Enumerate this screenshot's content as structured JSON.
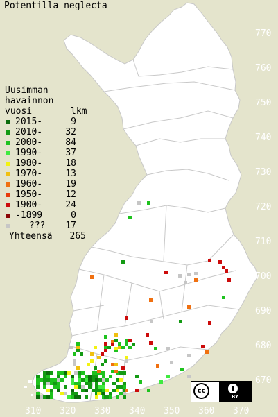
{
  "title": "Potentilla neglecta",
  "legend": {
    "header_line1": "Uusimman",
    "header_line2": "havainnon",
    "header_col1": "vuosi",
    "header_col2": "lkm",
    "items": [
      {
        "label": "2015-",
        "count": "9",
        "color": "#0b6b0b"
      },
      {
        "label": "2010-",
        "count": "32",
        "color": "#139a13"
      },
      {
        "label": "2000-",
        "count": "84",
        "color": "#1ec21e"
      },
      {
        "label": "1990-",
        "count": "37",
        "color": "#3fea3f"
      },
      {
        "label": "1980-",
        "count": "18",
        "color": "#f2f212"
      },
      {
        "label": "1970-",
        "count": "13",
        "color": "#f0c010"
      },
      {
        "label": "1960-",
        "count": "19",
        "color": "#f07010"
      },
      {
        "label": "1950-",
        "count": "12",
        "color": "#e83a0a"
      },
      {
        "label": "1900-",
        "count": "24",
        "color": "#cc0b0b"
      },
      {
        "label": "-1899",
        "count": "0",
        "color": "#8a0606"
      },
      {
        "label": "???",
        "count": "17",
        "color": "#c6c6c6"
      }
    ],
    "total_label": "Yhteensä",
    "total_count": "265"
  },
  "y_ticks": [
    "770",
    "760",
    "750",
    "740",
    "730",
    "720",
    "710",
    "700",
    "690",
    "680",
    "670"
  ],
  "x_ticks": [
    "310",
    "320",
    "330",
    "340",
    "350",
    "360",
    "370"
  ],
  "license": {
    "cc": "cc",
    "by": "BY"
  }
}
